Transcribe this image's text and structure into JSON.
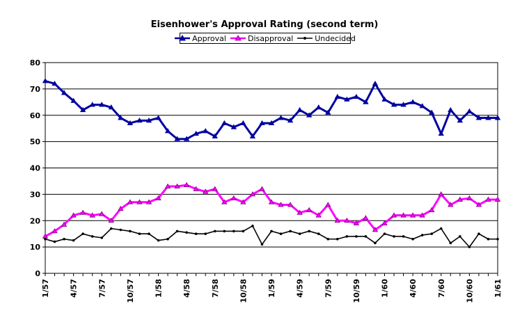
{
  "chart_data": {
    "type": "line",
    "title": "Eisenhower's Approval Rating (second term)",
    "xlabel": "",
    "ylabel": "",
    "ylim": [
      0,
      80
    ],
    "yticks": [
      0,
      10,
      20,
      30,
      40,
      50,
      60,
      70,
      80
    ],
    "grid": "horizontal",
    "legend_position": "top",
    "x_tick_labels": [
      "1/57",
      "4/57",
      "7/57",
      "10/57",
      "1/58",
      "4/58",
      "7/58",
      "10/58",
      "1/59",
      "4/59",
      "7/59",
      "10/59",
      "1/60",
      "4/60",
      "7/60",
      "10/60",
      "1/61"
    ],
    "series": [
      {
        "name": "Approval",
        "color": "#0000a0",
        "marker": "triangle",
        "values": [
          73,
          72,
          68.5,
          65.5,
          62,
          64,
          64,
          63,
          59,
          57,
          58,
          58,
          59,
          54,
          51,
          51,
          53,
          54,
          52,
          57,
          55.5,
          57,
          52,
          57,
          57,
          59,
          58,
          62,
          60,
          63,
          61,
          67,
          66,
          67,
          65,
          72,
          66,
          64,
          64,
          65,
          63.5,
          61,
          53,
          62,
          58,
          61.5,
          59,
          59,
          59
        ]
      },
      {
        "name": "Disapproval",
        "color": "#ff00ff",
        "marker": "triangle",
        "values": [
          14,
          16,
          18.5,
          22,
          23,
          22,
          22.5,
          20,
          24.5,
          27,
          27,
          27,
          28.5,
          33,
          33,
          33.5,
          32,
          31,
          32,
          27,
          28.5,
          27,
          30,
          32,
          27,
          26,
          26,
          23,
          24,
          22,
          26,
          20,
          20,
          19,
          21,
          16.5,
          19,
          22,
          22,
          22,
          22,
          24,
          30,
          26,
          28,
          28.5,
          26,
          28,
          28
        ]
      },
      {
        "name": "Undecided",
        "color": "#000000",
        "marker": "dot",
        "values": [
          13,
          12,
          13,
          12.5,
          15,
          14,
          13.5,
          17,
          16.5,
          16,
          15,
          15,
          12.5,
          13,
          16,
          15.5,
          15,
          15,
          16,
          16,
          16,
          16,
          18,
          11,
          16,
          15,
          16,
          15,
          16,
          15,
          13,
          13,
          14,
          14,
          14,
          11.5,
          15,
          14,
          14,
          13,
          14.5,
          15,
          17,
          11.5,
          14,
          10,
          15,
          13,
          13
        ]
      }
    ]
  }
}
